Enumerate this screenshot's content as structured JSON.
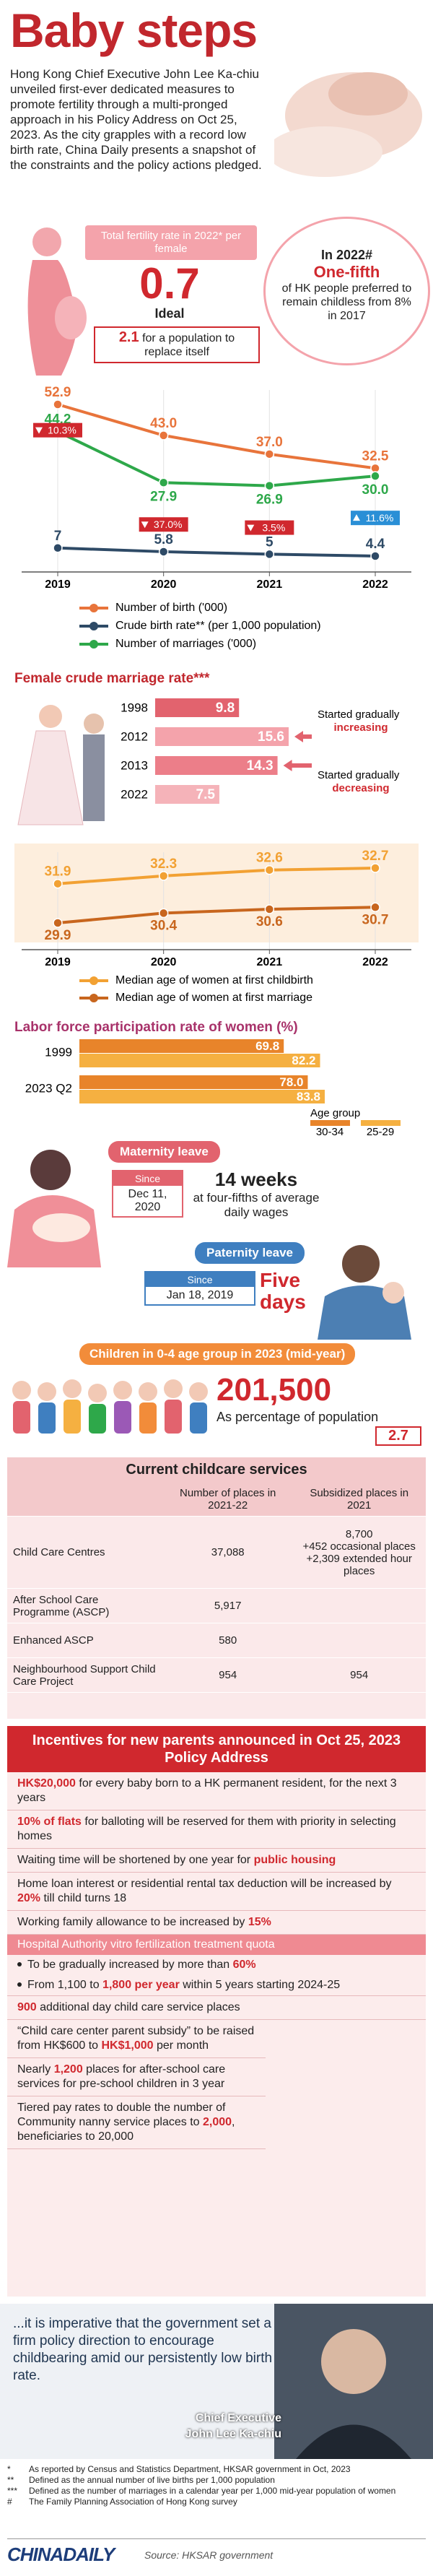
{
  "header": {
    "title": "Baby steps",
    "intro": "Hong Kong Chief Executive John Lee Ka-chiu unveiled first-ever dedicated measures to promote fertility through a multi-pronged approach in his Policy Address on Oct 25, 2023. As the city grapples with a record low birth rate, China Daily presents a snapshot of the constraints and the policy actions pledged."
  },
  "fertility": {
    "label": "Total fertility rate in 2022* per female",
    "value": 0.7,
    "ideal_label": "Ideal",
    "ideal_value": 2.1,
    "ideal_text": "for a population to replace itself"
  },
  "childless": {
    "year": "In 2022#",
    "highlight": "One-fifth",
    "text": "of HK people preferred to remain childless from 8% in 2017"
  },
  "chart_data": [
    {
      "type": "line",
      "categories": [
        "2019",
        "2020",
        "2021",
        "2022"
      ],
      "series": [
        {
          "name": "Number of birth ('000)",
          "color": "#e8743b",
          "values": [
            52.9,
            43,
            37,
            32.5
          ],
          "value_labels": [
            "52.9",
            "43.0",
            "37.0",
            "32.5"
          ]
        },
        {
          "name": "Crude birth rate** (per 1,000 population)",
          "color": "#2e4a66",
          "values": [
            7,
            5.8,
            5,
            4.4
          ]
        },
        {
          "name": "Number of marriages ('000)",
          "color": "#2ea84a",
          "values": [
            44.2,
            27.9,
            26.9,
            30
          ],
          "value_labels": [
            "44.2",
            "27.9",
            "26.9",
            "30.0"
          ],
          "change_labels": [
            "10.3%",
            "37.0%",
            "3.5%",
            "11.6%"
          ],
          "change_directions": [
            "down",
            "down",
            "down",
            "up"
          ],
          "change_colors": [
            "#d0282e",
            "#d0282e",
            "#d0282e",
            "#2a8fd6"
          ]
        }
      ]
    },
    {
      "type": "bar",
      "orientation": "horizontal",
      "title": "Female crude marriage rate***",
      "categories": [
        "1998",
        "2012",
        "2013",
        "2022"
      ],
      "values": [
        9.8,
        15.6,
        14.3,
        7.5
      ],
      "colors": [
        "#e2636e",
        "#f4a3ab",
        "#ec7e89",
        "#f5b3b9"
      ],
      "annotations": [
        {
          "text": "Started gradually",
          "emphasis": "increasing"
        },
        {
          "text": "Started gradually",
          "emphasis": "decreasing"
        }
      ]
    },
    {
      "type": "line",
      "categories": [
        "2019",
        "2020",
        "2021",
        "2022"
      ],
      "series": [
        {
          "name": "Median age of women at first childbirth",
          "color": "#f2a133",
          "values": [
            31.9,
            32.3,
            32.6,
            32.7
          ]
        },
        {
          "name": "Median age of women at first marriage",
          "color": "#c8661e",
          "values": [
            29.9,
            30.4,
            30.6,
            30.7
          ]
        }
      ]
    },
    {
      "type": "bar",
      "orientation": "horizontal",
      "title": "Labor force participation rate of women (%)",
      "categories": [
        "1999",
        "2023 Q2"
      ],
      "legend_title": "Age group",
      "series": [
        {
          "name": "30-34",
          "color": "#e8842a",
          "values": [
            69.8,
            78
          ],
          "value_labels": [
            "69.8",
            "78.0"
          ]
        },
        {
          "name": "25-29",
          "color": "#f5b041",
          "values": [
            82.2,
            83.8
          ]
        }
      ]
    }
  ],
  "maternity": {
    "title": "Maternity leave",
    "since": "Since",
    "date": "Dec 11, 2020",
    "headline": "14 weeks",
    "text": "at four-fifths of average daily wages"
  },
  "paternity": {
    "title": "Paternity leave",
    "since": "Since",
    "date": "Jan 18, 2019",
    "headline": "Five days"
  },
  "children": {
    "title": "Children in 0-4 age group in 2023 (mid-year)",
    "value": "201,500",
    "share_label": "As percentage of population",
    "share": 2.7
  },
  "table": {
    "title": "Current childcare services",
    "columns": [
      "Number of places in 2021-22",
      "Subsidized places in 2021"
    ],
    "rows": [
      [
        "Child Care Centres",
        "37,088",
        [
          "8,700",
          "+452 occasional places",
          "+2,309 extended hour places"
        ]
      ],
      [
        "After School Care Programme (ASCP)",
        "5,917",
        null
      ],
      [
        "Enhanced ASCP",
        "580",
        null
      ],
      [
        "Neighbourhood Support Child Care Project",
        "954",
        "954"
      ]
    ]
  },
  "incentives": {
    "title": "Incentives for new parents announced in Oct 25, 2023 Policy Address",
    "items": [
      {
        "parts": [
          {
            "text": "HK$20,000",
            "highlight": true
          },
          {
            "text": " for every baby born to a HK permanent resident, for the next 3 years"
          }
        ]
      },
      {
        "parts": [
          {
            "text": "10% of flats",
            "highlight": true
          },
          {
            "text": " for balloting will be reserved for them with priority in selecting homes"
          }
        ]
      },
      {
        "parts": [
          {
            "text": "Waiting time will be shortened by one year for "
          },
          {
            "text": "public housing",
            "highlight": true
          }
        ]
      },
      {
        "parts": [
          {
            "text": "Home loan interest or residential rental tax deduction will be increased by "
          },
          {
            "text": "20%",
            "highlight": true
          },
          {
            "text": " till child turns 18"
          }
        ]
      },
      {
        "parts": [
          {
            "text": "Working family allowance to be increased by "
          },
          {
            "text": "15%",
            "highlight": true
          }
        ]
      },
      {
        "heading": "Hospital Authority vitro fertilization treatment quota",
        "bullets": [
          {
            "parts": [
              {
                "text": "To be gradually increased by more than "
              },
              {
                "text": "60%",
                "highlight": true
              }
            ]
          },
          {
            "parts": [
              {
                "text": "From 1,100 to "
              },
              {
                "text": "1,800 per year",
                "highlight": true
              },
              {
                "text": " within 5 years starting 2024-25"
              }
            ]
          }
        ]
      },
      {
        "parts": [
          {
            "text": "900",
            "highlight": true
          },
          {
            "text": " additional day child care service places"
          }
        ]
      },
      {
        "parts": [
          {
            "text": "“Child care center parent subsidy” to be raised from HK$600 to "
          },
          {
            "text": "HK$1,000",
            "highlight": true
          },
          {
            "text": " per month"
          }
        ]
      },
      {
        "parts": [
          {
            "text": "Nearly "
          },
          {
            "text": "1,200",
            "highlight": true
          },
          {
            "text": " places for after-school care services for pre-school children in 3 year"
          }
        ]
      },
      {
        "parts": [
          {
            "text": "Tiered pay rates to double the number of Community nanny service places to "
          },
          {
            "text": "2,000",
            "highlight": true
          },
          {
            "text": ", beneficiaries to 20,000"
          }
        ]
      }
    ]
  },
  "quote": {
    "text": "...it is imperative that the government set a firm policy direction to encourage childbearing amid our persistently low birth rate.",
    "role": "Chief Executive",
    "name": "John Lee Ka-chiu"
  },
  "footnotes": [
    {
      "mark": "*",
      "text": "As reported by Census and Statistics Department, HKSAR government in Oct, 2023"
    },
    {
      "mark": "**",
      "text": "Defined as the annual number of live births per 1,000 population"
    },
    {
      "mark": "***",
      "text": "Defined as the number of marriages in a calendar year per 1,000 mid-year population of women"
    },
    {
      "mark": "#",
      "text": "The Family Planning Association of Hong Kong survey"
    }
  ],
  "footer": {
    "logo": "CHINADAILY",
    "source": "Source: HKSAR government"
  }
}
